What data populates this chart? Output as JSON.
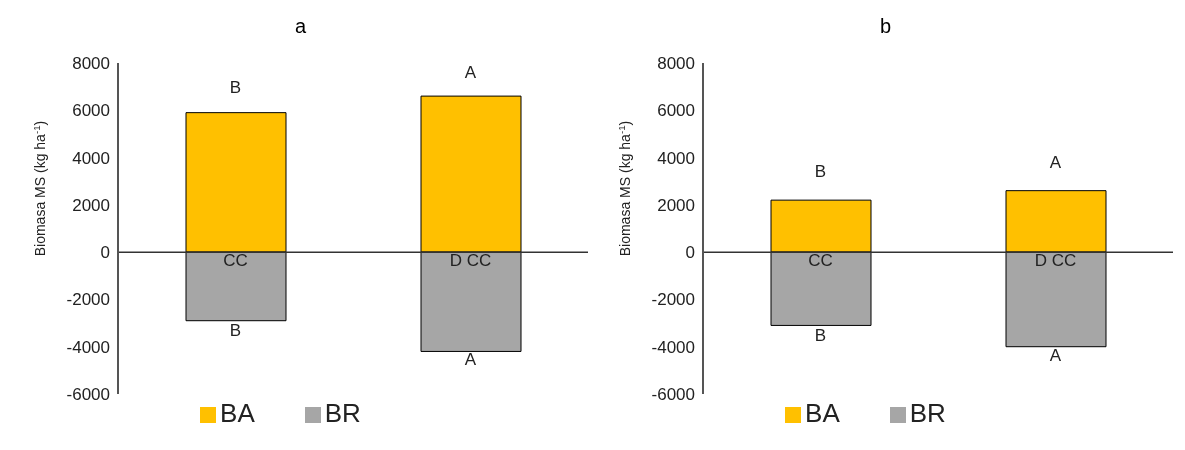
{
  "chart_data": [
    {
      "type": "bar",
      "title": "a",
      "ylabel": "Biomasa MS (kg ha$^{-1}$)",
      "categories": [
        "CC",
        "D CC"
      ],
      "stacked": true,
      "series": [
        {
          "name": "BA",
          "color": "#ffc000",
          "values": [
            5900,
            6600
          ]
        },
        {
          "name": "BR",
          "color": "#a6a6a6",
          "values": [
            -2900,
            -4200
          ]
        }
      ],
      "ylim": [
        -6000,
        8000
      ],
      "yticks": [
        -6000,
        -4000,
        -2000,
        0,
        2000,
        4000,
        6000,
        8000
      ],
      "grid": false,
      "legend": "bottom",
      "annotations": [
        "B",
        "A",
        "B",
        "A"
      ]
    },
    {
      "type": "bar",
      "title": "b",
      "ylabel": "Biomasa MS (kg ha$^{-1}$)",
      "categories": [
        "CC",
        "D CC"
      ],
      "stacked": true,
      "series": [
        {
          "name": "BA",
          "color": "#ffc000",
          "values": [
            2200,
            2600
          ]
        },
        {
          "name": "BR",
          "color": "#a6a6a6",
          "values": [
            -3100,
            -4000
          ]
        }
      ],
      "ylim": [
        -6000,
        8000
      ],
      "yticks": [
        -6000,
        -4000,
        -2000,
        0,
        2000,
        4000,
        6000,
        8000
      ],
      "grid": false,
      "legend": "bottom",
      "annotations": [
        "B",
        "A",
        "B",
        "A"
      ]
    }
  ]
}
